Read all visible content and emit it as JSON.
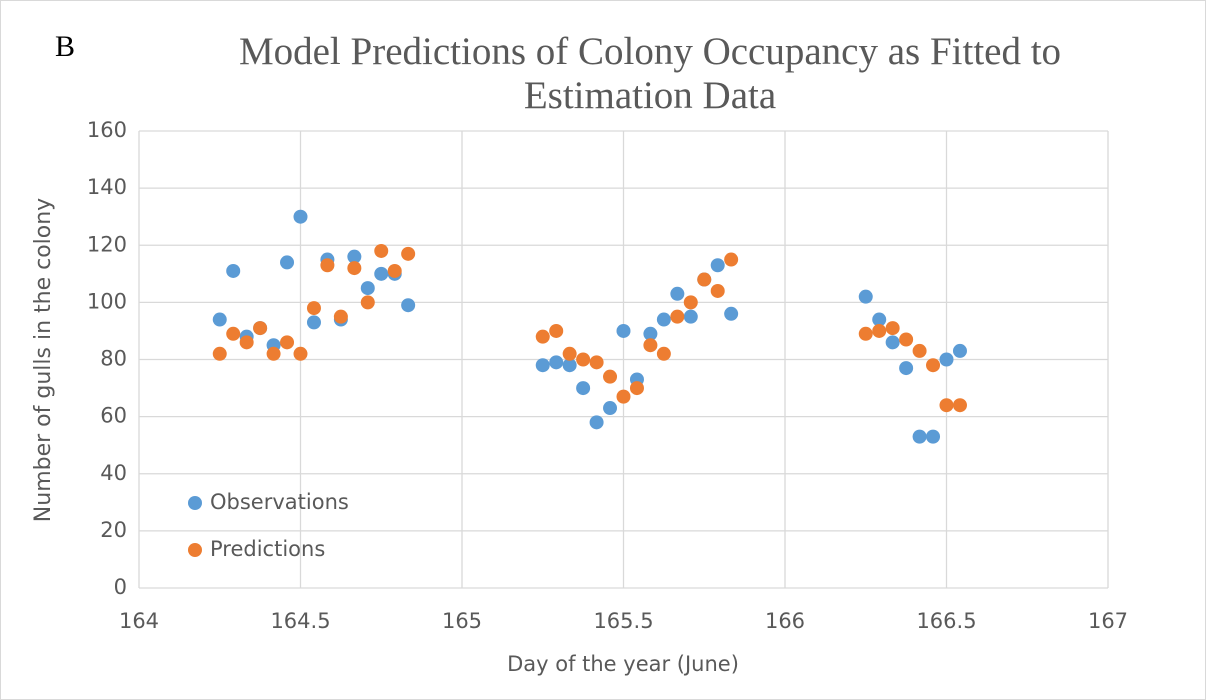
{
  "chart_data": {
    "type": "scatter",
    "panel_label": "B",
    "title": "Model Predictions of Colony Occupancy as Fitted to Estimation Data",
    "xlabel": "Day of the year (June)",
    "ylabel": "Number of gulls in the colony",
    "x": [
      164.25,
      164.2917,
      164.3333,
      164.375,
      164.4167,
      164.4583,
      164.5,
      164.5417,
      164.5833,
      164.625,
      164.6667,
      164.7083,
      164.75,
      164.7917,
      164.8333,
      165.25,
      165.2917,
      165.3333,
      165.375,
      165.4167,
      165.4583,
      165.5,
      165.5417,
      165.5833,
      165.625,
      165.6667,
      165.7083,
      165.75,
      165.7917,
      165.8333,
      166.25,
      166.2917,
      166.3333,
      166.375,
      166.4167,
      166.4583,
      166.5,
      166.5417
    ],
    "series": [
      {
        "name": "Observations",
        "color": "#5b9bd5",
        "values": [
          94,
          111,
          88,
          91,
          85,
          114,
          130,
          93,
          115,
          94,
          116,
          105,
          110,
          110,
          99,
          78,
          79,
          78,
          70,
          58,
          63,
          90,
          73,
          89,
          94,
          103,
          95,
          108,
          113,
          96,
          102,
          94,
          86,
          77,
          53,
          53,
          80,
          83
        ]
      },
      {
        "name": "Predictions",
        "color": "#ed7d31",
        "values": [
          82,
          89,
          86,
          91,
          82,
          86,
          82,
          98,
          113,
          95,
          112,
          100,
          118,
          111,
          117,
          88,
          90,
          82,
          80,
          79,
          74,
          67,
          70,
          85,
          82,
          95,
          100,
          108,
          104,
          115,
          89,
          90,
          91,
          87,
          83,
          78,
          64,
          64
        ]
      }
    ],
    "xlim": [
      164,
      167
    ],
    "xticks": [
      164,
      164.5,
      165,
      165.5,
      166,
      166.5,
      167
    ],
    "ylim": [
      0,
      160
    ],
    "yticks": [
      0,
      20,
      40,
      60,
      80,
      100,
      120,
      140,
      160
    ],
    "grid": true,
    "legend": "lower left"
  }
}
